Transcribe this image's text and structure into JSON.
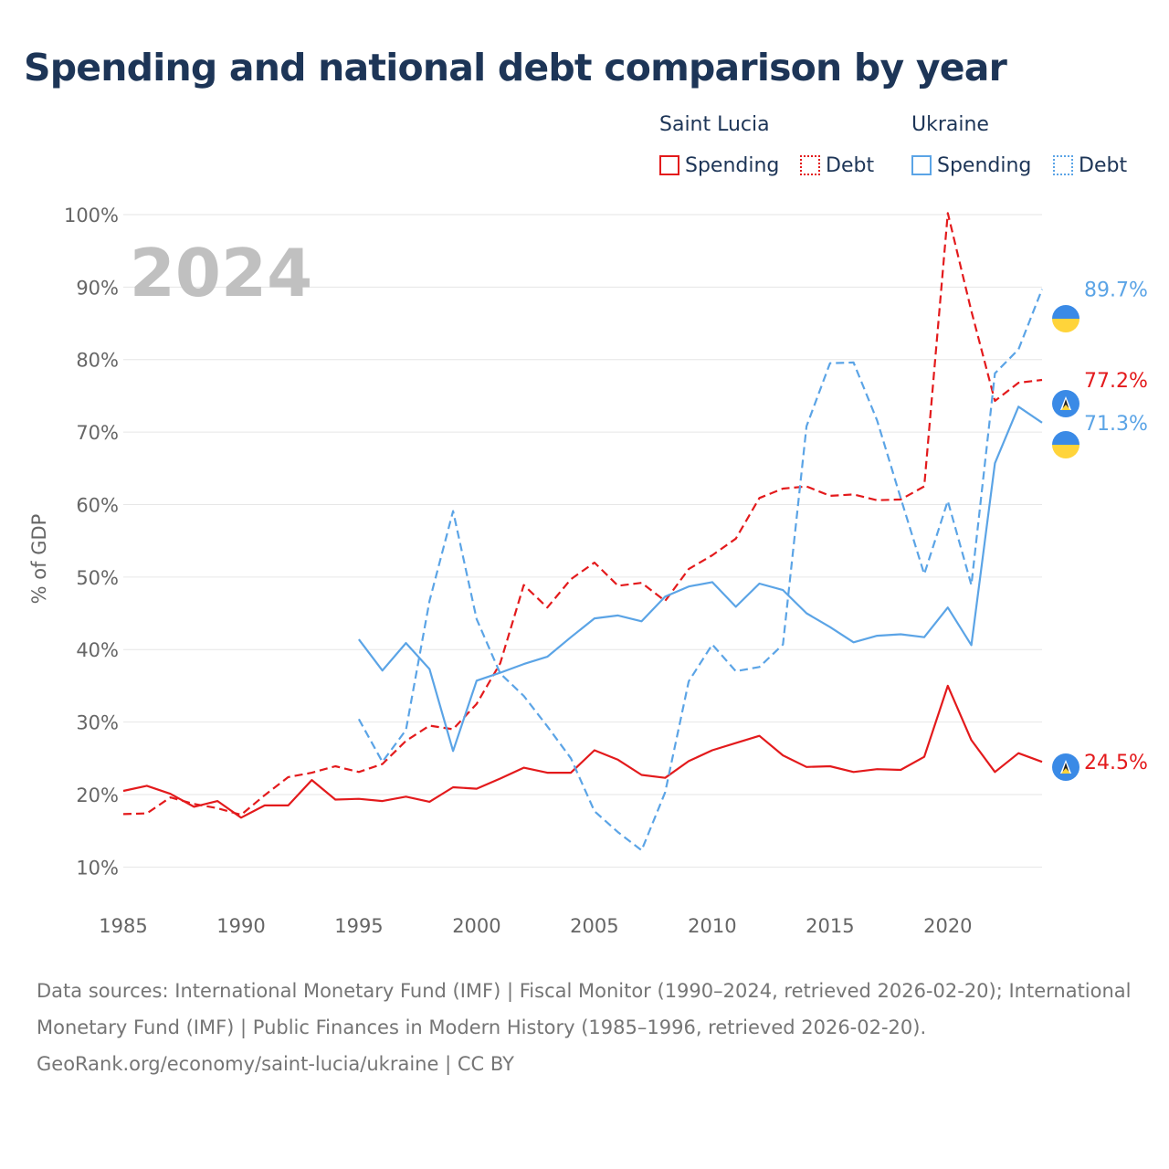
{
  "title": "Spending and national debt comparison by year",
  "legend": {
    "groups": [
      {
        "country": "Saint Lucia",
        "items": [
          "Spending",
          "Debt"
        ]
      },
      {
        "country": "Ukraine",
        "items": [
          "Spending",
          "Debt"
        ]
      }
    ]
  },
  "colors": {
    "saint_lucia": "#e31a1c",
    "ukraine": "#5ba4e6",
    "grid": "#e6e6e6",
    "axis_text": "#666666",
    "year_watermark": "#c0c0c0"
  },
  "footer": {
    "sources": "Data sources: International Monetary Fund (IMF) | Fiscal Monitor (1990–2024, retrieved 2026-02-20); International Monetary Fund (IMF) | Public Finances in Modern History (1985–1996, retrieved 2026-02-20).",
    "credit": "GeoRank.org/economy/saint-lucia/ukraine | CC BY"
  },
  "chart_data": {
    "type": "line",
    "year_label": "2024",
    "ylabel": "% of GDP",
    "xlim": [
      1985,
      2024
    ],
    "ylim": [
      5,
      100
    ],
    "x_ticks": [
      1985,
      1990,
      1995,
      2000,
      2005,
      2010,
      2015,
      2020
    ],
    "y_ticks": [
      10,
      20,
      30,
      40,
      50,
      60,
      70,
      80,
      90,
      100
    ],
    "y_tick_labels": [
      "10%",
      "20%",
      "30%",
      "40%",
      "50%",
      "60%",
      "70%",
      "80%",
      "90%",
      "100%"
    ],
    "series": [
      {
        "name": "Saint Lucia Spending",
        "country": "saint_lucia",
        "style": "solid",
        "end_label": "24.5%",
        "x": [
          1985,
          1986,
          1987,
          1988,
          1989,
          1990,
          1991,
          1992,
          1993,
          1994,
          1995,
          1996,
          1997,
          1998,
          1999,
          2000,
          2001,
          2002,
          2003,
          2004,
          2005,
          2006,
          2007,
          2008,
          2009,
          2010,
          2011,
          2012,
          2013,
          2014,
          2015,
          2016,
          2017,
          2018,
          2019,
          2020,
          2021,
          2022,
          2023,
          2024
        ],
        "values": [
          20.5,
          21.2,
          20.1,
          18.3,
          19.1,
          16.8,
          18.5,
          18.5,
          22,
          19.3,
          19.4,
          19.1,
          19.7,
          19,
          21,
          20.8,
          22.2,
          23.7,
          23,
          23,
          26.1,
          24.8,
          22.7,
          22.3,
          24.6,
          26.1,
          27.1,
          28.1,
          25.4,
          23.8,
          23.9,
          23.1,
          23.5,
          23.4,
          25.2,
          35,
          27.5,
          23.1,
          25.7,
          24.5
        ]
      },
      {
        "name": "Saint Lucia Debt",
        "country": "saint_lucia",
        "style": "dashed",
        "end_label": "77.2%",
        "x": [
          1985,
          1986,
          1987,
          1988,
          1989,
          1990,
          1991,
          1992,
          1993,
          1994,
          1995,
          1996,
          1997,
          1998,
          1999,
          2000,
          2001,
          2002,
          2003,
          2004,
          2005,
          2006,
          2007,
          2008,
          2009,
          2010,
          2011,
          2012,
          2013,
          2014,
          2015,
          2016,
          2017,
          2018,
          2019,
          2020,
          2021,
          2022,
          2023,
          2024
        ],
        "values": [
          17.3,
          17.4,
          19.6,
          18.7,
          18.1,
          17.2,
          19.9,
          22.4,
          23,
          23.9,
          23.1,
          24.2,
          27.4,
          29.5,
          29,
          32.5,
          38.1,
          48.9,
          45.8,
          49.7,
          52,
          48.8,
          49.2,
          46.7,
          51.1,
          53,
          55.3,
          60.9,
          62.2,
          62.5,
          61.2,
          61.4,
          60.6,
          60.7,
          62.5,
          100.2,
          86.7,
          74.3,
          76.8,
          77.2
        ]
      },
      {
        "name": "Ukraine Spending",
        "country": "ukraine",
        "style": "solid",
        "end_label": "71.3%",
        "x": [
          1995,
          1996,
          1997,
          1998,
          1999,
          2000,
          2001,
          2002,
          2003,
          2004,
          2005,
          2006,
          2007,
          2008,
          2009,
          2010,
          2011,
          2012,
          2013,
          2014,
          2015,
          2016,
          2017,
          2018,
          2019,
          2020,
          2021,
          2022,
          2023,
          2024
        ],
        "values": [
          41.4,
          37.1,
          40.9,
          37.3,
          26,
          35.7,
          36.8,
          38,
          39,
          41.7,
          44.3,
          44.7,
          43.9,
          47.3,
          48.7,
          49.3,
          45.9,
          49.1,
          48.2,
          45,
          43.1,
          41,
          41.9,
          42.1,
          41.7,
          45.8,
          40.6,
          65.7,
          73.5,
          71.3
        ]
      },
      {
        "name": "Ukraine Debt",
        "country": "ukraine",
        "style": "dashed",
        "end_label": "89.7%",
        "x": [
          1995,
          1996,
          1997,
          1998,
          1999,
          2000,
          2001,
          2002,
          2003,
          2004,
          2005,
          2006,
          2007,
          2008,
          2009,
          2010,
          2011,
          2012,
          2013,
          2014,
          2015,
          2016,
          2017,
          2018,
          2019,
          2020,
          2021,
          2022,
          2023,
          2024
        ],
        "values": [
          30.4,
          24.5,
          28.9,
          46.7,
          59.1,
          44.2,
          36.7,
          33.6,
          29.4,
          25,
          17.7,
          14.8,
          12.3,
          20.3,
          35.6,
          40.7,
          37,
          37.6,
          40.7,
          70.8,
          79.5,
          79.6,
          71.6,
          60.9,
          50.4,
          60.5,
          48.9,
          78.1,
          81.4,
          89.7
        ]
      }
    ]
  }
}
